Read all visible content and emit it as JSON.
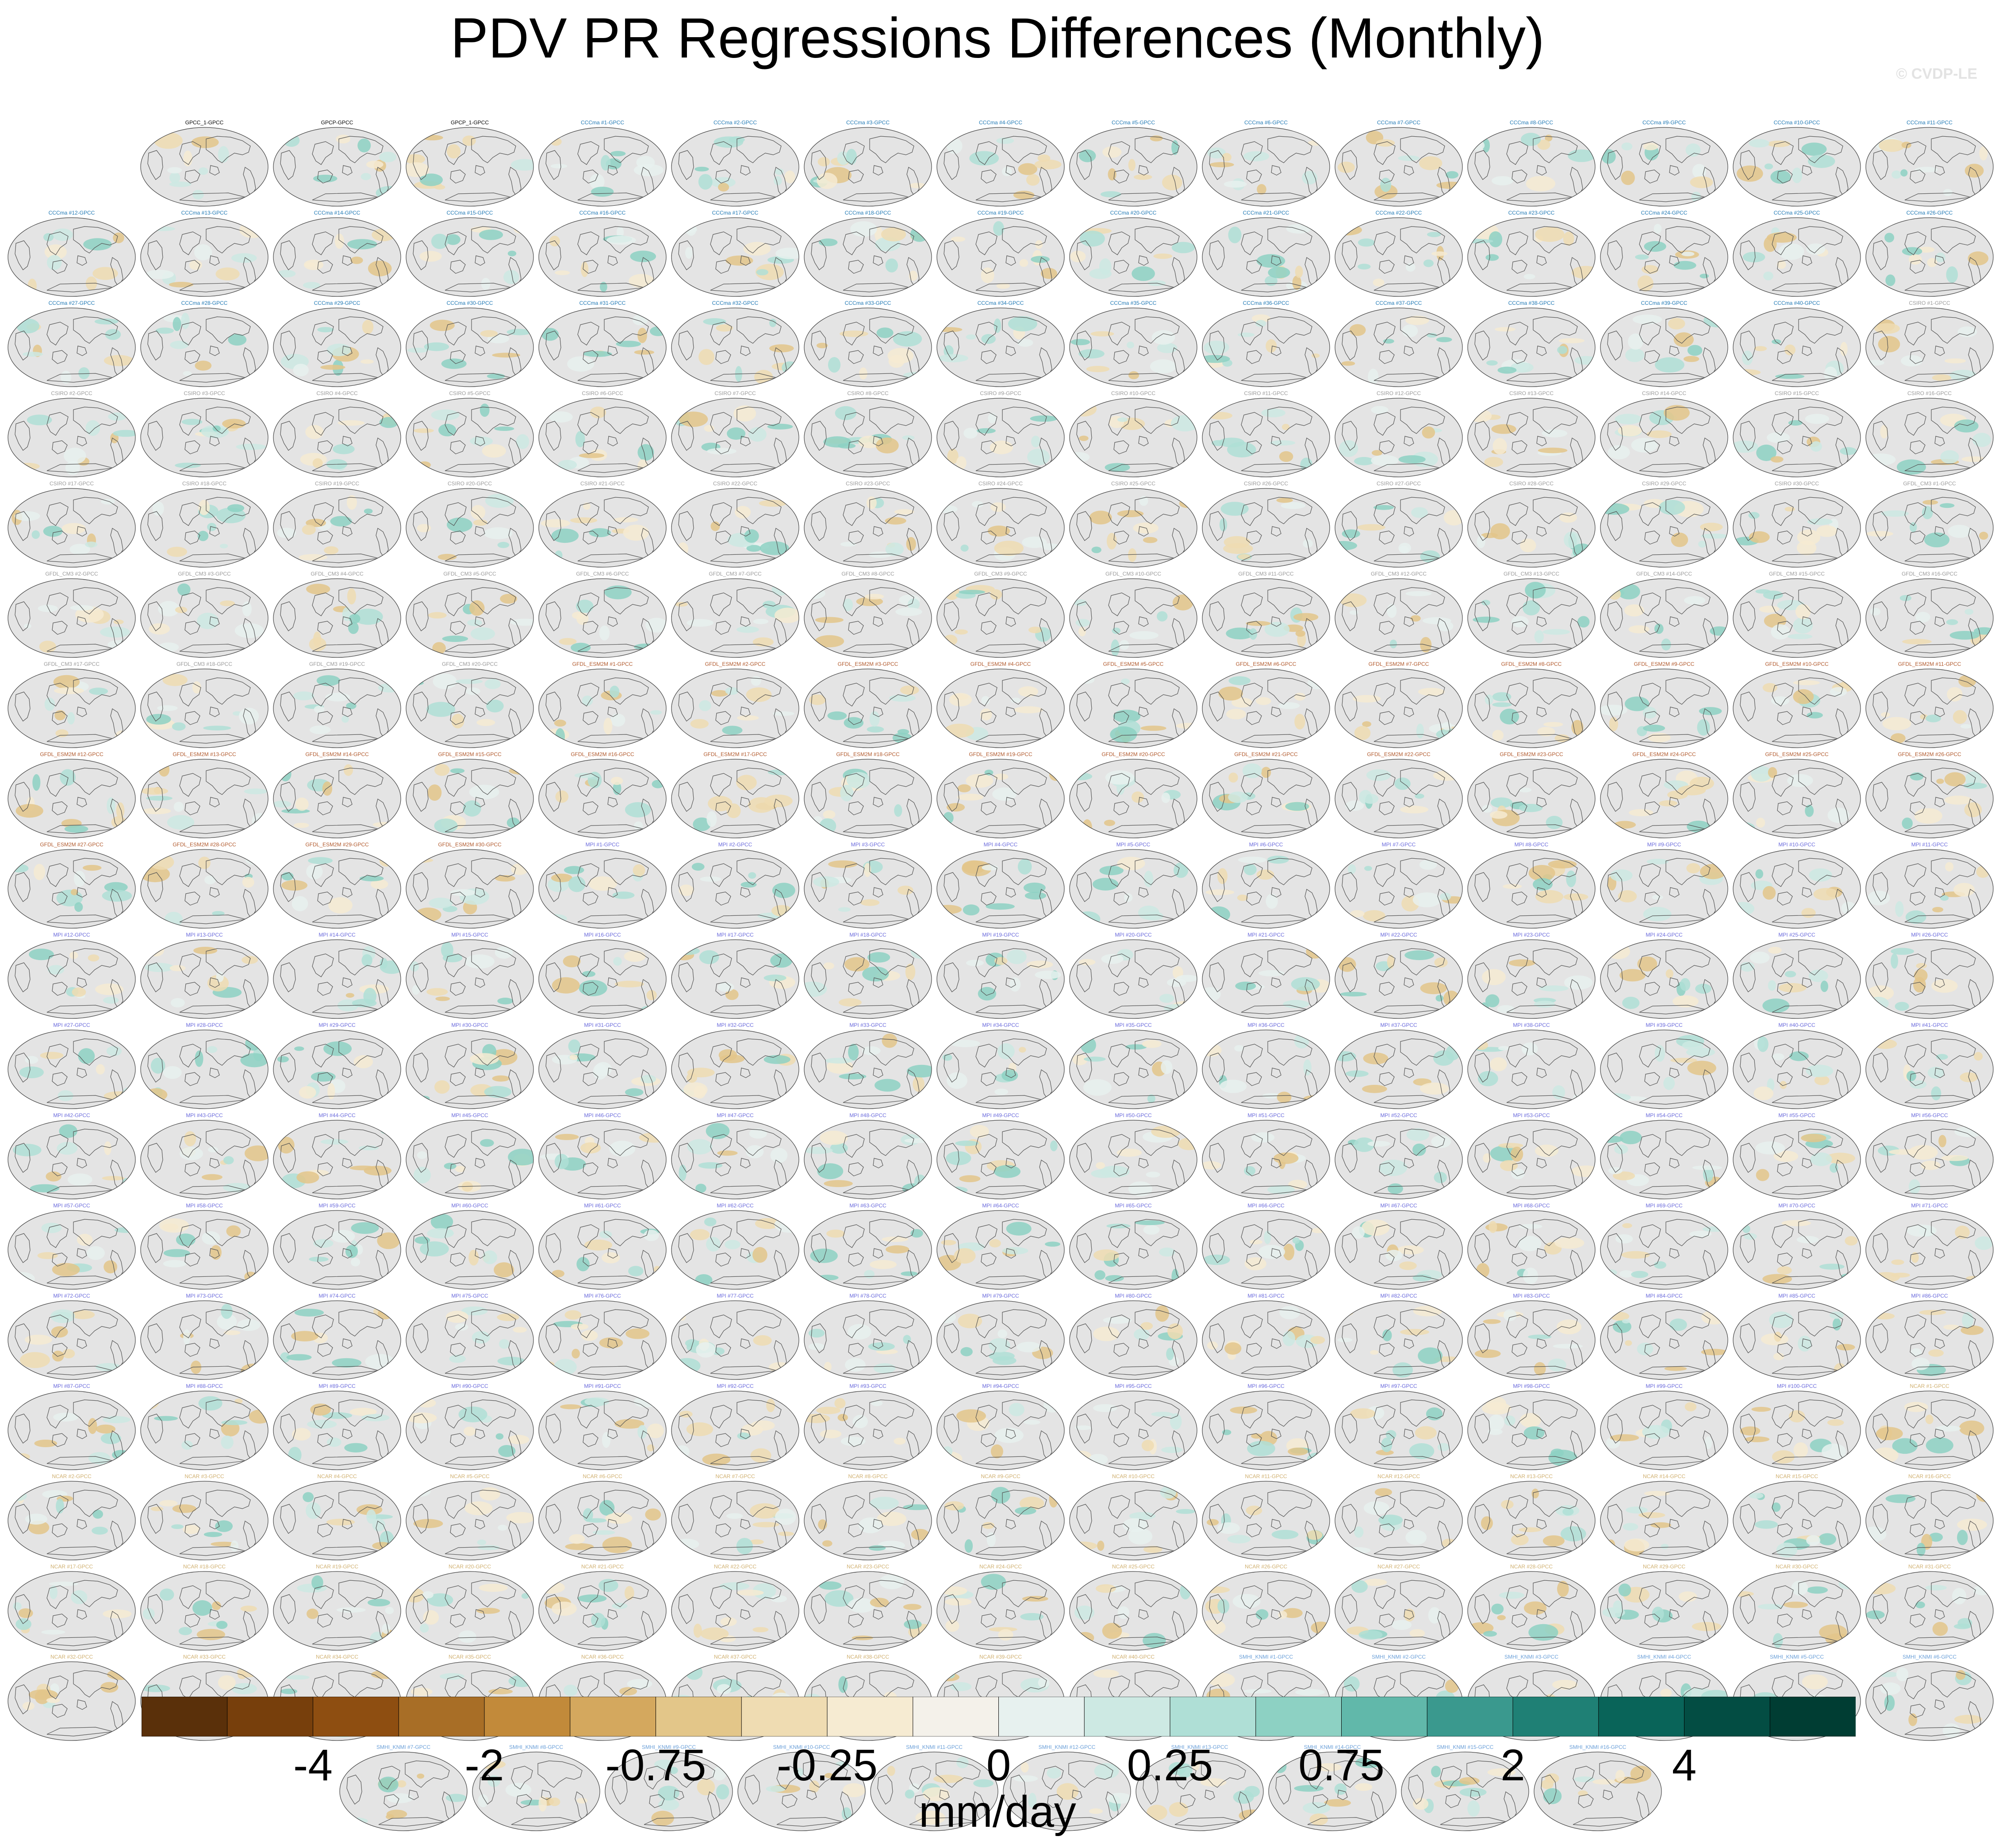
{
  "title": "PDV PR Regressions Differences (Monthly)",
  "watermark": "© CVDP-LE",
  "chart_data": {
    "type": "heatmap",
    "projection": "Robinson-style global maps, Pacific-centered",
    "variable": "PDV PR regression differences vs GPCC",
    "colorbar": {
      "units": "mm/day",
      "tick_labels": [
        "-4",
        "-2",
        "-0.75",
        "-0.25",
        "0",
        "0.25",
        "0.75",
        "2",
        "4"
      ],
      "colors": [
        "#5a300a",
        "#773f0c",
        "#8e4e11",
        "#a86e26",
        "#c28a3a",
        "#d4a85e",
        "#e3c689",
        "#efdcb2",
        "#f6ebd2",
        "#f4f1ea",
        "#e7f1ef",
        "#cde9e3",
        "#afdfd6",
        "#8dd1c3",
        "#61b8aa",
        "#3a998e",
        "#1f8075",
        "#096459",
        "#034d43",
        "#003d33"
      ]
    },
    "groups": [
      {
        "name": "GPCC_1-GPCC",
        "count": 1,
        "title_color": "#000000",
        "label": "GPCC_1-GPCC"
      },
      {
        "name": "GPCP-GPCC",
        "count": 1,
        "title_color": "#000000",
        "label": "GPCP-GPCC"
      },
      {
        "name": "GPCP_1-GPCC",
        "count": 1,
        "title_color": "#000000",
        "label": "GPCP_1-GPCC"
      },
      {
        "name": "CCCma",
        "count": 40,
        "title_color": "#1f78b4",
        "prefix": "CCCma #",
        "suffix": "-GPCC"
      },
      {
        "name": "CSIRO",
        "count": 30,
        "title_color": "#9a9a9a",
        "prefix": "CSIRO #",
        "suffix": "-GPCC"
      },
      {
        "name": "GFDL_CM3",
        "count": 20,
        "title_color": "#9a9a9a",
        "prefix": "GFDL_CM3 #",
        "suffix": "-GPCC"
      },
      {
        "name": "GFDL_ESM2M",
        "count": 30,
        "title_color": "#b1592c",
        "prefix": "GFDL_ESM2M #",
        "suffix": "-GPCC"
      },
      {
        "name": "MPI",
        "count": 100,
        "title_color": "#6a6adc",
        "prefix": "MPI #",
        "suffix": "-GPCC"
      },
      {
        "name": "NCAR",
        "count": 40,
        "title_color": "#d0b070",
        "prefix": "NCAR #",
        "suffix": "-GPCC"
      },
      {
        "name": "SMHI_KNMI",
        "count": 16,
        "title_color": "#6a9fd8",
        "prefix": "SMHI_KNMI #",
        "suffix": "-GPCC"
      }
    ]
  }
}
